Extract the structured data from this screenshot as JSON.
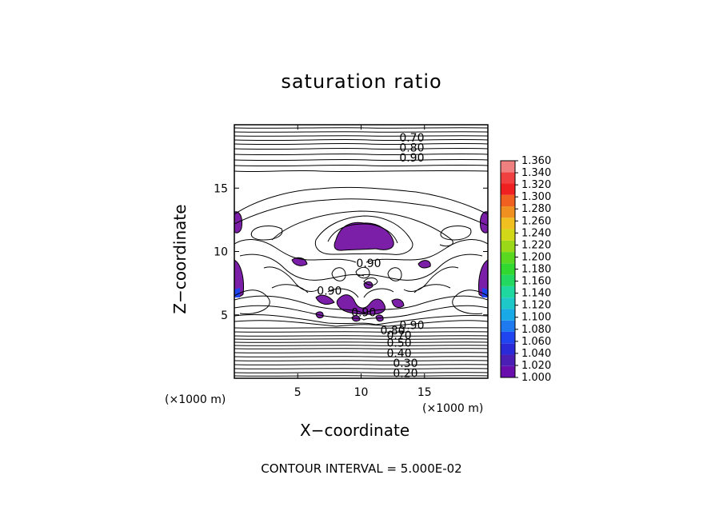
{
  "chart_data": {
    "type": "contour",
    "title": "saturation ratio",
    "xlabel": "X−coordinate",
    "ylabel": "Z−coordinate",
    "x_unit_label": "(×1000 m)",
    "y_unit_label": "(×1000 m)",
    "xlim": [
      0,
      20
    ],
    "ylim": [
      0,
      20
    ],
    "x_ticks": [
      5,
      10,
      15
    ],
    "y_ticks": [
      5,
      10,
      15
    ],
    "contour_labels": [
      {
        "text": "0.70",
        "x": 14.0,
        "y": 19.0
      },
      {
        "text": "0.80",
        "x": 14.0,
        "y": 18.2
      },
      {
        "text": "0.90",
        "x": 14.0,
        "y": 17.4
      },
      {
        "text": "0.90",
        "x": 10.6,
        "y": 9.1
      },
      {
        "text": "0.90",
        "x": 7.5,
        "y": 6.9
      },
      {
        "text": "0.90",
        "x": 10.2,
        "y": 5.2
      },
      {
        "text": "0.90",
        "x": 14.0,
        "y": 4.2
      },
      {
        "text": "0.80",
        "x": 12.5,
        "y": 3.8
      },
      {
        "text": "0.70",
        "x": 13.0,
        "y": 3.4
      },
      {
        "text": "0.50",
        "x": 13.0,
        "y": 2.8
      },
      {
        "text": "0.40",
        "x": 13.0,
        "y": 2.0
      },
      {
        "text": "0.30",
        "x": 13.5,
        "y": 1.2
      },
      {
        "text": "0.20",
        "x": 13.5,
        "y": 0.4
      }
    ],
    "colorbar": {
      "levels": [
        "1.000",
        "1.020",
        "1.040",
        "1.060",
        "1.080",
        "1.100",
        "1.120",
        "1.140",
        "1.160",
        "1.180",
        "1.200",
        "1.220",
        "1.240",
        "1.260",
        "1.280",
        "1.300",
        "1.320",
        "1.340",
        "1.360"
      ],
      "colors": [
        "#6a0dad",
        "#4b1fb5",
        "#2a2ad9",
        "#1f45f0",
        "#1f7af0",
        "#19a9e6",
        "#1ec8c8",
        "#1fd8a0",
        "#22d860",
        "#30d830",
        "#5ad820",
        "#9ad818",
        "#d0d818",
        "#f0c020",
        "#f09020",
        "#f06020",
        "#f02020",
        "#f04040",
        "#f08080"
      ]
    },
    "fill_color": "#7b1fa8",
    "contour_interval_text": "CONTOUR INTERVAL =  5.000E-02"
  }
}
